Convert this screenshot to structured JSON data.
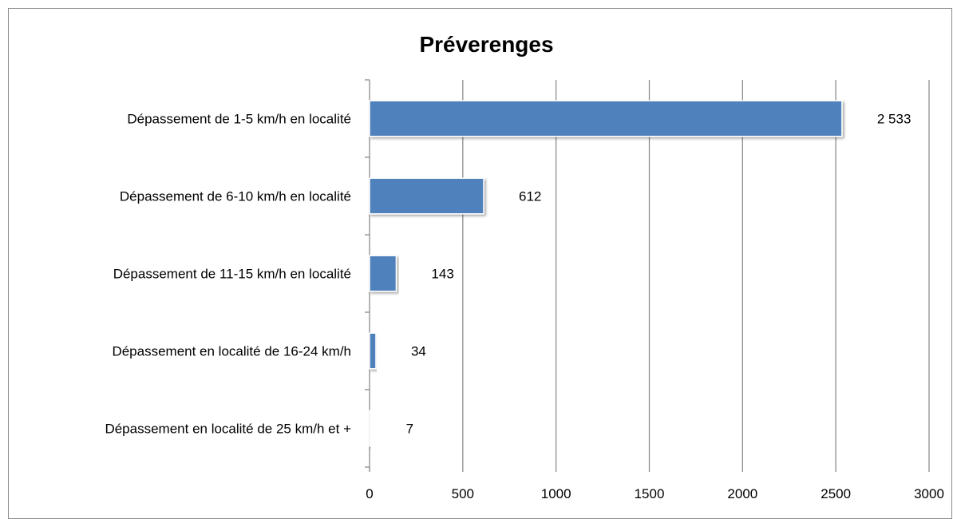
{
  "chart_data": {
    "type": "bar",
    "orientation": "horizontal",
    "title": "Préverenges",
    "categories": [
      "Dépassement de 1-5 km/h en localité",
      "Dépassement de 6-10 km/h en localité",
      "Dépassement de 11-15 km/h en localité",
      "Dépassement en  localité de 16-24 km/h",
      "Dépassement en localité de 25 km/h et +"
    ],
    "values": [
      2533,
      612,
      143,
      34,
      7
    ],
    "data_labels": [
      "2 533",
      "612",
      "143",
      "34",
      "7"
    ],
    "xlim": [
      0,
      3000
    ],
    "xticks": [
      0,
      500,
      1000,
      1500,
      2000,
      2500,
      3000
    ],
    "xtick_labels": [
      "0",
      "500",
      "1000",
      "1500",
      "2000",
      "2500",
      "3000"
    ],
    "grid": "vertical",
    "legend": "none",
    "bar_color": "#4f81bd"
  }
}
